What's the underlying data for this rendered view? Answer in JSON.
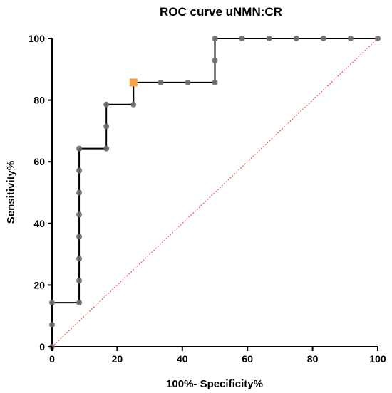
{
  "chart_data": {
    "type": "line",
    "title": "ROC curve uNMN:CR",
    "xlabel": "100%- Specificity%",
    "ylabel": "Sensitivity%",
    "xlim": [
      0,
      100
    ],
    "ylim": [
      0,
      100
    ],
    "xticks": [
      0,
      20,
      40,
      60,
      80,
      100
    ],
    "yticks": [
      0,
      20,
      40,
      60,
      80,
      100
    ],
    "grid": false,
    "series": [
      {
        "type": "step-line",
        "color": "#000000",
        "marker_color": "#6b6b6b",
        "points": [
          [
            0,
            0
          ],
          [
            0,
            7.14
          ],
          [
            0,
            14.29
          ],
          [
            8.33,
            14.29
          ],
          [
            8.33,
            21.43
          ],
          [
            8.33,
            28.57
          ],
          [
            8.33,
            35.71
          ],
          [
            8.33,
            42.86
          ],
          [
            8.33,
            50
          ],
          [
            8.33,
            57.14
          ],
          [
            8.33,
            64.29
          ],
          [
            16.67,
            64.29
          ],
          [
            16.67,
            71.43
          ],
          [
            16.67,
            78.57
          ],
          [
            25,
            78.57
          ],
          [
            25,
            85.71
          ],
          [
            33.33,
            85.71
          ],
          [
            41.67,
            85.71
          ],
          [
            50,
            85.71
          ],
          [
            50,
            92.86
          ],
          [
            50,
            100
          ],
          [
            58.33,
            100
          ],
          [
            66.67,
            100
          ],
          [
            75,
            100
          ],
          [
            83.33,
            100
          ],
          [
            91.67,
            100
          ],
          [
            100,
            100
          ]
        ]
      },
      {
        "type": "reference-line",
        "color": "#e8413c",
        "points": [
          [
            0,
            0
          ],
          [
            100,
            100
          ]
        ]
      }
    ],
    "highlight_point": {
      "x": 25,
      "y": 85.71,
      "color": "#f5a04a",
      "shape": "square"
    }
  }
}
